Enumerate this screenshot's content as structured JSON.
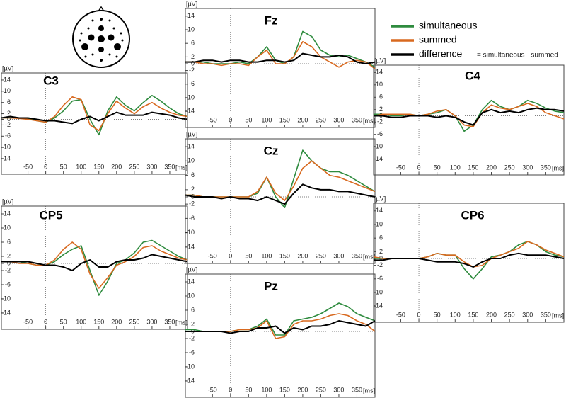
{
  "chart_data": [
    {
      "type": "line",
      "title": "C3",
      "ylabel": "[µV]",
      "xlabel": "[ms]",
      "x": [
        -125,
        -100,
        -75,
        -50,
        -25,
        0,
        25,
        50,
        75,
        100,
        125,
        150,
        175,
        200,
        225,
        250,
        275,
        300,
        325,
        350,
        375,
        400
      ],
      "xlim": [
        -125,
        400
      ],
      "ylim": [
        -15,
        15
      ],
      "xticks": [
        -50,
        0,
        50,
        100,
        150,
        200,
        250,
        300,
        350
      ],
      "yticks": [
        14,
        10,
        6,
        2,
        0,
        -2,
        -6,
        -10,
        -14
      ],
      "annotation": "= simultaneous - summed",
      "series": [
        {
          "name": "simultaneous",
          "color": "#2e8b3e",
          "values": [
            0.5,
            0.5,
            0.5,
            0.3,
            -0.5,
            -1,
            0.5,
            3,
            6.5,
            7,
            0,
            -5.5,
            3,
            8,
            5,
            3,
            6,
            8.5,
            6.5,
            4,
            2,
            1
          ]
        },
        {
          "name": "summed",
          "color": "#d8691f",
          "values": [
            0.5,
            0.5,
            0.3,
            0,
            -0.5,
            -1,
            1,
            5,
            8,
            7,
            -2,
            -4,
            2,
            6.5,
            4,
            2,
            4.5,
            6,
            4,
            2.5,
            1.5,
            1
          ]
        },
        {
          "name": "difference",
          "color": "#000000",
          "values": [
            0.5,
            1,
            0.5,
            0.5,
            0,
            -0.5,
            -0.5,
            -1,
            -1.5,
            0,
            1,
            -0.5,
            1,
            2.5,
            1.5,
            1.5,
            1.5,
            2.5,
            2,
            1.5,
            0.5,
            0
          ]
        }
      ]
    },
    {
      "type": "line",
      "title": "CP5",
      "ylabel": "[µV]",
      "xlabel": "[ms]",
      "x": [
        -125,
        -100,
        -75,
        -50,
        -25,
        0,
        25,
        50,
        75,
        100,
        125,
        150,
        175,
        200,
        225,
        250,
        275,
        300,
        325,
        350,
        375,
        400
      ],
      "xlim": [
        -125,
        400
      ],
      "ylim": [
        -15,
        15
      ],
      "xticks": [
        -50,
        0,
        50,
        100,
        150,
        200,
        250,
        300,
        350
      ],
      "yticks": [
        14,
        10,
        6,
        2,
        0,
        -2,
        -6,
        -10,
        -14
      ],
      "series": [
        {
          "name": "simultaneous",
          "color": "#2e8b3e",
          "values": [
            0.5,
            0.5,
            0.5,
            0,
            -0.5,
            -0.5,
            0.5,
            2.5,
            4,
            5,
            -2,
            -9,
            -5,
            0,
            1,
            3,
            6,
            6.5,
            5,
            3.5,
            2,
            1
          ]
        },
        {
          "name": "summed",
          "color": "#d8691f",
          "values": [
            0.5,
            0.5,
            0,
            0,
            -0.5,
            -0.5,
            1,
            4,
            6,
            4,
            -3,
            -7,
            -4,
            -0.5,
            0.5,
            2,
            4.5,
            5,
            3.5,
            2.5,
            1.5,
            1
          ]
        },
        {
          "name": "difference",
          "color": "#000000",
          "values": [
            0.5,
            0.5,
            0.5,
            0.5,
            0,
            -0.5,
            -0.5,
            -1,
            -2,
            0,
            1,
            -1,
            -1,
            0.5,
            1,
            1,
            1.5,
            2.5,
            2,
            1.5,
            1,
            0.5
          ]
        }
      ]
    },
    {
      "type": "line",
      "title": "Fz",
      "ylabel": "[µV]",
      "xlabel": "[ms]",
      "x": [
        -125,
        -100,
        -75,
        -50,
        -25,
        0,
        25,
        50,
        75,
        100,
        125,
        150,
        175,
        200,
        225,
        250,
        275,
        300,
        325,
        350,
        375,
        400
      ],
      "xlim": [
        -125,
        400
      ],
      "ylim": [
        -15,
        15
      ],
      "xticks": [
        -50,
        0,
        50,
        100,
        150,
        200,
        250,
        300,
        350
      ],
      "yticks": [
        14,
        10,
        6,
        2,
        0,
        -2,
        -6,
        -10,
        -14
      ],
      "series": [
        {
          "name": "simultaneous",
          "color": "#2e8b3e",
          "values": [
            0.5,
            0.5,
            0.5,
            0,
            0,
            0,
            0.5,
            0,
            2,
            5,
            1,
            0,
            2,
            9.5,
            8,
            4,
            2.5,
            2,
            2.5,
            1.5,
            0.5,
            -1
          ]
        },
        {
          "name": "summed",
          "color": "#d8691f",
          "values": [
            0.5,
            0.5,
            0,
            0,
            -0.5,
            0,
            0,
            -0.5,
            2,
            4,
            0,
            0,
            2,
            6.5,
            5,
            2,
            0.5,
            -1,
            0.5,
            1,
            0.5,
            -1.5
          ]
        },
        {
          "name": "difference",
          "color": "#000000",
          "values": [
            0.5,
            0.5,
            1,
            1,
            0.5,
            1,
            1,
            0.5,
            0.5,
            1,
            1,
            0.5,
            1,
            3,
            2.5,
            2,
            2,
            2.5,
            2,
            0.5,
            0,
            0.5
          ]
        }
      ]
    },
    {
      "type": "line",
      "title": "Cz",
      "ylabel": "[µV]",
      "xlabel": "[ms]",
      "x": [
        -125,
        -100,
        -75,
        -50,
        -25,
        0,
        25,
        50,
        75,
        100,
        125,
        150,
        175,
        200,
        225,
        250,
        275,
        300,
        325,
        350,
        375,
        400
      ],
      "xlim": [
        -125,
        400
      ],
      "ylim": [
        -15,
        15
      ],
      "xticks": [
        -50,
        0,
        50,
        100,
        150,
        200,
        250,
        300,
        350
      ],
      "yticks": [
        14,
        10,
        6,
        2,
        0,
        -2,
        -6,
        -10,
        -14
      ],
      "series": [
        {
          "name": "simultaneous",
          "color": "#2e8b3e",
          "values": [
            0.5,
            0.5,
            0,
            0,
            0,
            0,
            0,
            0,
            1,
            5.5,
            0,
            -3,
            5,
            13,
            10,
            8,
            7,
            7,
            6,
            4.5,
            3,
            1.5
          ]
        },
        {
          "name": "summed",
          "color": "#d8691f",
          "values": [
            0.5,
            0.5,
            0,
            0,
            0,
            0,
            0,
            0,
            1.5,
            5.5,
            1,
            -1,
            3,
            8,
            10,
            8,
            6,
            5.5,
            4.5,
            3.5,
            2.5,
            1.5
          ]
        },
        {
          "name": "difference",
          "color": "#000000",
          "values": [
            0.5,
            0,
            0,
            0,
            -0.5,
            0,
            -0.5,
            -0.5,
            -1,
            0,
            -1,
            -2,
            1,
            3.5,
            2.5,
            2,
            2,
            1.5,
            1.5,
            1,
            0.5,
            0
          ]
        }
      ]
    },
    {
      "type": "line",
      "title": "Pz",
      "ylabel": "[µV]",
      "xlabel": "[ms]",
      "x": [
        -125,
        -100,
        -75,
        -50,
        -25,
        0,
        25,
        50,
        75,
        100,
        125,
        150,
        175,
        200,
        225,
        250,
        275,
        300,
        325,
        350,
        375,
        400
      ],
      "xlim": [
        -125,
        400
      ],
      "ylim": [
        -15,
        15
      ],
      "xticks": [
        -50,
        0,
        50,
        100,
        150,
        200,
        250,
        300,
        350
      ],
      "yticks": [
        14,
        10,
        6,
        2,
        0,
        -2,
        -6,
        -10,
        -14
      ],
      "series": [
        {
          "name": "simultaneous",
          "color": "#2e8b3e",
          "values": [
            0.5,
            0.5,
            0,
            0,
            0,
            0,
            0.5,
            0.5,
            1.5,
            3.5,
            -1,
            -1,
            3,
            3.5,
            4,
            5,
            6.5,
            8,
            7,
            5,
            4,
            3
          ]
        },
        {
          "name": "summed",
          "color": "#d8691f",
          "values": [
            0,
            0,
            0,
            0,
            0,
            0,
            0.5,
            0.5,
            1,
            3,
            -2,
            -1.5,
            2,
            3,
            3,
            3.5,
            4.5,
            5,
            4.5,
            3,
            2,
            0
          ]
        },
        {
          "name": "difference",
          "color": "#000000",
          "values": [
            0,
            0,
            0,
            0,
            0,
            -0.5,
            0,
            0,
            1,
            1,
            1.5,
            -0.5,
            1,
            0.5,
            1.5,
            1.5,
            2,
            3,
            2.5,
            2,
            1.5,
            3
          ]
        }
      ]
    },
    {
      "type": "line",
      "title": "C4",
      "ylabel": "[µV]",
      "xlabel": "[ms]",
      "x": [
        -125,
        -100,
        -75,
        -50,
        -25,
        0,
        25,
        50,
        75,
        100,
        125,
        150,
        175,
        200,
        225,
        250,
        275,
        300,
        325,
        350,
        375,
        400
      ],
      "xlim": [
        -125,
        400
      ],
      "ylim": [
        -15,
        15
      ],
      "xticks": [
        -50,
        0,
        50,
        100,
        150,
        200,
        250,
        300,
        350
      ],
      "yticks": [
        14,
        10,
        6,
        2,
        0,
        -2,
        -6,
        -10,
        -14
      ],
      "series": [
        {
          "name": "simultaneous",
          "color": "#2e8b3e",
          "values": [
            0.5,
            0.5,
            0,
            0,
            0.5,
            0,
            0.5,
            1,
            2,
            0,
            -5,
            -3,
            2,
            5,
            3,
            2,
            3,
            5,
            4,
            2.5,
            1.5,
            1
          ]
        },
        {
          "name": "summed",
          "color": "#d8691f",
          "values": [
            0,
            0.5,
            0.5,
            0.5,
            0.5,
            0,
            0.5,
            1.5,
            2,
            0,
            -3,
            -3.5,
            1,
            3.5,
            2.5,
            2,
            3,
            4,
            3,
            1,
            0,
            -1
          ]
        },
        {
          "name": "difference",
          "color": "#000000",
          "values": [
            0,
            0,
            -0.5,
            -0.5,
            0,
            0,
            0,
            -0.5,
            0,
            -0.5,
            -2,
            -3,
            1,
            2,
            1,
            1.5,
            1,
            2,
            2.5,
            2,
            2,
            1.5
          ]
        }
      ]
    },
    {
      "type": "line",
      "title": "CP6",
      "ylabel": "[µV]",
      "xlabel": "[ms]",
      "x": [
        -125,
        -100,
        -75,
        -50,
        -25,
        0,
        25,
        50,
        75,
        100,
        125,
        150,
        175,
        200,
        225,
        250,
        275,
        300,
        325,
        350,
        375,
        400
      ],
      "xlim": [
        -125,
        400
      ],
      "ylim": [
        -15,
        15
      ],
      "xticks": [
        -50,
        0,
        50,
        100,
        150,
        200,
        250,
        300,
        350
      ],
      "yticks": [
        14,
        10,
        6,
        2,
        0,
        -2,
        -6,
        -10,
        -14
      ],
      "series": [
        {
          "name": "simultaneous",
          "color": "#2e8b3e",
          "values": [
            0,
            0,
            0,
            0,
            0,
            0,
            0.5,
            1.5,
            1,
            1,
            -3,
            -6,
            -3,
            0.5,
            1,
            2,
            4,
            5,
            4,
            2,
            1,
            0.5
          ]
        },
        {
          "name": "summed",
          "color": "#d8691f",
          "values": [
            0.5,
            0,
            0,
            0,
            0,
            0,
            0.5,
            1.5,
            1,
            1,
            -1,
            -2.5,
            -2,
            0,
            1,
            2,
            3,
            5,
            4,
            2.5,
            1.5,
            0.5
          ]
        },
        {
          "name": "difference",
          "color": "#000000",
          "values": [
            -0.5,
            -0.5,
            0,
            0,
            0,
            0,
            -0.5,
            -1,
            -1,
            -1,
            -1.5,
            -2.5,
            -1,
            0,
            0,
            1,
            1.5,
            1,
            1,
            1,
            0.5,
            0
          ]
        }
      ]
    }
  ]
}
